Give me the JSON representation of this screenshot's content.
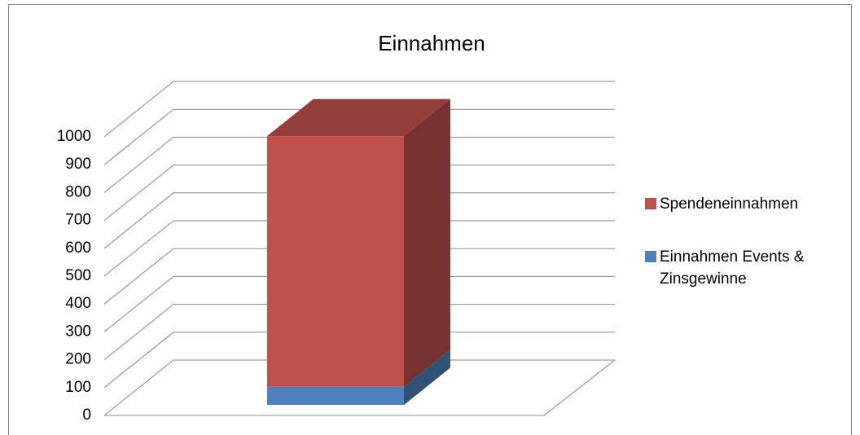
{
  "chart_data": {
    "type": "bar3d_stacked",
    "title": "Einnahmen",
    "categories": [
      null
    ],
    "series": [
      {
        "name": "Spendeneinnahmen",
        "color": "#c0504d",
        "values": [
          900
        ]
      },
      {
        "name": "Einnahmen Events & Zinsgewinne",
        "color": "#4f81bd",
        "values": [
          65
        ]
      }
    ],
    "ylim": [
      0,
      1000
    ],
    "yticks": [
      0,
      100,
      200,
      300,
      400,
      500,
      600,
      700,
      800,
      900,
      1000
    ],
    "grid": true,
    "legend": "right"
  }
}
